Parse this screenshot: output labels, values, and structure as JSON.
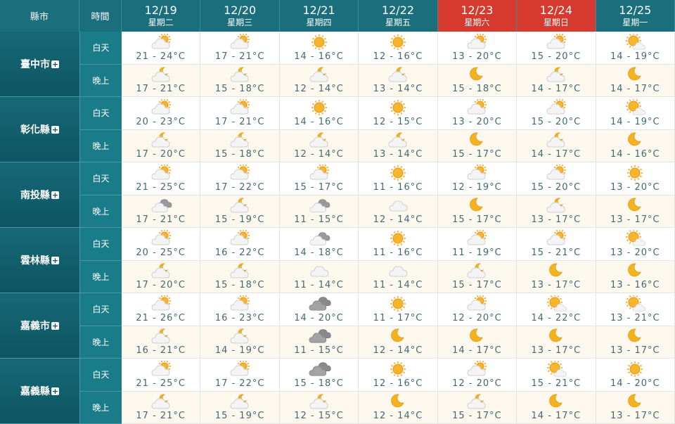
{
  "header": {
    "county": "縣市",
    "time": "時間",
    "days": [
      {
        "date": "12/19",
        "weekday": "星期二"
      },
      {
        "date": "12/20",
        "weekday": "星期三"
      },
      {
        "date": "12/21",
        "weekday": "星期四"
      },
      {
        "date": "12/22",
        "weekday": "星期五"
      },
      {
        "date": "12/23",
        "weekday": "星期六"
      },
      {
        "date": "12/24",
        "weekday": "星期日"
      },
      {
        "date": "12/25",
        "weekday": "星期一"
      }
    ]
  },
  "rows": [
    {
      "county": "臺中市",
      "periods": [
        {
          "label": "白天",
          "temps": [
            "21 - 24°C",
            "17 - 21°C",
            "14 - 16°C",
            "12 - 16°C",
            "13 - 20°C",
            "15 - 20°C",
            "14 - 19°C"
          ]
        },
        {
          "label": "晚上",
          "temps": [
            "17 - 21°C",
            "15 - 18°C",
            "12 - 14°C",
            "13 - 14°C",
            "15 - 18°C",
            "14 - 17°C",
            "14 - 17°C"
          ]
        }
      ]
    },
    {
      "county": "彰化縣",
      "periods": [
        {
          "label": "白天",
          "temps": [
            "20 - 23°C",
            "17 - 21°C",
            "14 - 16°C",
            "12 - 15°C",
            "13 - 20°C",
            "15 - 20°C",
            "14 - 19°C"
          ]
        },
        {
          "label": "晚上",
          "temps": [
            "17 - 20°C",
            "15 - 18°C",
            "12 - 14°C",
            "13 - 14°C",
            "15 - 17°C",
            "14 - 17°C",
            "14 - 16°C"
          ]
        }
      ]
    },
    {
      "county": "南投縣",
      "periods": [
        {
          "label": "白天",
          "temps": [
            "21 - 25°C",
            "17 - 22°C",
            "15 - 17°C",
            "11 - 16°C",
            "12 - 19°C",
            "15 - 20°C",
            "13 - 20°C"
          ]
        },
        {
          "label": "晚上",
          "temps": [
            "17 - 21°C",
            "15 - 19°C",
            "11 - 15°C",
            "12 - 14°C",
            "15 - 17°C",
            "13 - 17°C",
            "13 - 17°C"
          ]
        }
      ]
    },
    {
      "county": "雲林縣",
      "periods": [
        {
          "label": "白天",
          "temps": [
            "20 - 25°C",
            "16 - 22°C",
            "14 - 18°C",
            "11 - 16°C",
            "11 - 19°C",
            "15 - 21°C",
            "13 - 20°C"
          ]
        },
        {
          "label": "晚上",
          "temps": [
            "17 - 20°C",
            "15 - 18°C",
            "11 - 14°C",
            "11 - 14°C",
            "15 - 17°C",
            "13 - 17°C",
            "13 - 16°C"
          ]
        }
      ]
    },
    {
      "county": "嘉義市",
      "periods": [
        {
          "label": "白天",
          "temps": [
            "21 - 26°C",
            "16 - 23°C",
            "14 - 20°C",
            "11 - 17°C",
            "12 - 20°C",
            "14 - 22°C",
            "13 - 21°C"
          ]
        },
        {
          "label": "晚上",
          "temps": [
            "16 - 21°C",
            "14 - 19°C",
            "11 - 15°C",
            "12 - 14°C",
            "14 - 17°C",
            "13 - 17°C",
            "13 - 17°C"
          ]
        }
      ]
    },
    {
      "county": "嘉義縣",
      "periods": [
        {
          "label": "白天",
          "temps": [
            "21 - 25°C",
            "17 - 22°C",
            "15 - 18°C",
            "12 - 16°C",
            "12 - 20°C",
            "15 - 21°C",
            "14 - 20°C"
          ]
        },
        {
          "label": "晚上",
          "temps": [
            "17 - 21°C",
            "15 - 19°C",
            "12 - 15°C",
            "12 - 14°C",
            "15 - 17°C",
            "14 - 17°C",
            "13 - 17°C"
          ]
        }
      ]
    }
  ]
}
